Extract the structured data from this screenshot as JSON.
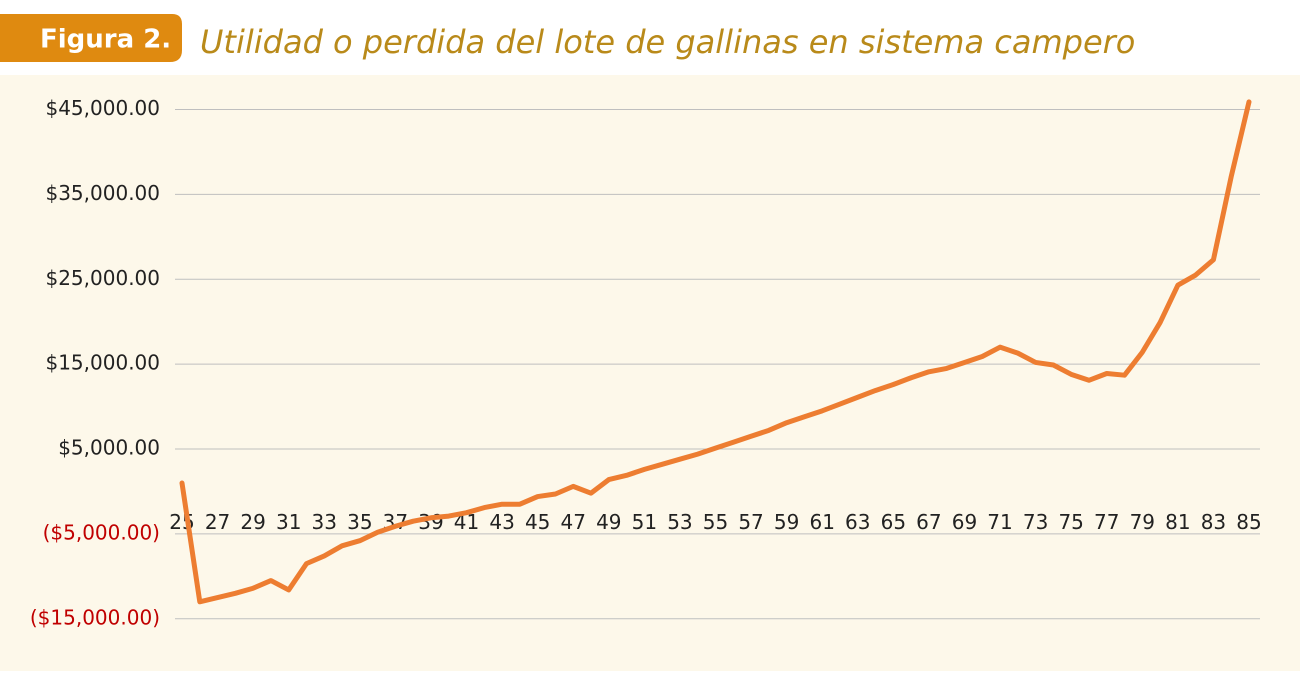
{
  "chart_data": {
    "type": "line",
    "figure_label": "Figura 2.",
    "title": "Utilidad o perdida del lote de gallinas en sistema campero",
    "x": [
      25,
      26,
      27,
      28,
      29,
      30,
      31,
      32,
      33,
      34,
      35,
      36,
      37,
      38,
      39,
      40,
      41,
      42,
      43,
      44,
      45,
      46,
      47,
      48,
      49,
      50,
      51,
      52,
      53,
      54,
      55,
      56,
      57,
      58,
      59,
      60,
      61,
      62,
      63,
      64,
      65,
      66,
      67,
      68,
      69,
      70,
      71,
      72,
      73,
      74,
      75,
      76,
      77,
      78,
      79,
      80,
      81,
      82,
      83,
      84,
      85
    ],
    "series": [
      {
        "color": "#ed7d31",
        "values": [
          1000,
          -13000,
          -12500,
          -12000,
          -11400,
          -10500,
          -11600,
          -8500,
          -7600,
          -6400,
          -5800,
          -4800,
          -4100,
          -3500,
          -3100,
          -2900,
          -2500,
          -1900,
          -1500,
          -1500,
          -600,
          -300,
          600,
          -200,
          1400,
          1900,
          2600,
          3200,
          3800,
          4400,
          5100,
          5800,
          6500,
          7200,
          8100,
          8800,
          9500,
          10300,
          11100,
          11900,
          12600,
          13400,
          14100,
          14500,
          15200,
          15900,
          17000,
          16300,
          15200,
          14900,
          13800,
          13100,
          13900,
          13700,
          16400,
          19900,
          24300,
          25500,
          27300,
          37100,
          45900
        ]
      }
    ],
    "xlim": [
      25,
      85
    ],
    "xticks": [
      25,
      27,
      29,
      31,
      33,
      35,
      37,
      39,
      41,
      43,
      45,
      47,
      49,
      51,
      53,
      55,
      57,
      59,
      61,
      63,
      65,
      67,
      69,
      71,
      73,
      75,
      77,
      79,
      81,
      83,
      85
    ],
    "ylim": [
      -17500,
      47300
    ],
    "yticks": [
      {
        "value": 45000,
        "label": "$45,000.00"
      },
      {
        "value": 35000,
        "label": "$35,000.00"
      },
      {
        "value": 25000,
        "label": "$25,000.00"
      },
      {
        "value": 15000,
        "label": "$15,000.00"
      },
      {
        "value": 5000,
        "label": "$5,000.00"
      },
      {
        "value": -5000,
        "label": "($5,000.00)"
      },
      {
        "value": -15000,
        "label": "($15,000.00)"
      }
    ],
    "negative_tick_color": "#c00000",
    "grid": true
  }
}
